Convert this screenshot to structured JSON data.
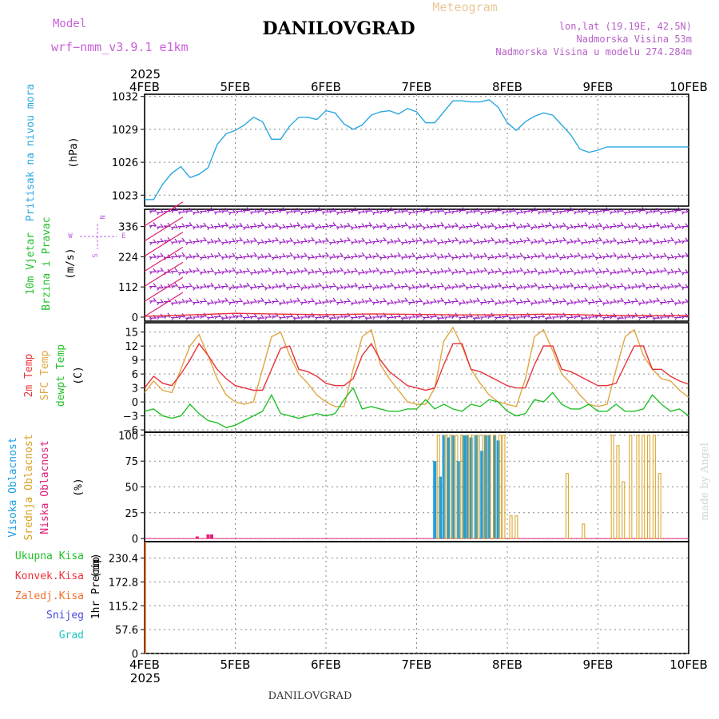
{
  "header": {
    "model_label": "Model",
    "model_name": "wrf−nmm_v3.9.1  e1km",
    "station_title": "DANILOVGRAD",
    "meteogram_label": "Meteogram",
    "lonlat": "lon,lat (19.19E, 42.5N)",
    "altitude": "Nadmorska Visina 53m",
    "model_altitude": "Nadmorska Visina u modelu 274.284m"
  },
  "footer": {
    "station": "DANILOVGRAD",
    "credit": "made by Angel"
  },
  "colors": {
    "pressure": "#2aa7e0",
    "wind": "#a020c8",
    "wind_arrow": "#e0206e",
    "t2m": "#e8323c",
    "sfc": "#e0a640",
    "dewpt": "#22c02a",
    "high_cloud": "#1e9ee0",
    "mid_cloud": "#d8a020",
    "low_cloud": "#e0207a",
    "precip_total": "#22c02a",
    "precip_conv": "#e8323c",
    "precip_frz": "#f07030",
    "precip_snow": "#4848e0",
    "precip_hail": "#20c8c0"
  },
  "chart_data": [
    {
      "type": "line",
      "panel": "pressure",
      "ylabel_main": "Pritisak na nivou mora",
      "ylabel_unit": "(hPa)",
      "x_ticks": [
        "4FEB",
        "5FEB",
        "6FEB",
        "7FEB",
        "8FEB",
        "9FEB",
        "10FEB"
      ],
      "x_year": "2025",
      "y_ticks": [
        "1023",
        "1026",
        "1029",
        "1032"
      ],
      "ylim": [
        1022,
        1032.2
      ],
      "x": [
        0,
        0.1,
        0.2,
        0.3,
        0.4,
        0.5,
        0.6,
        0.7,
        0.8,
        0.9,
        1.0,
        1.1,
        1.2,
        1.3,
        1.4,
        1.5,
        1.6,
        1.7,
        1.8,
        1.9,
        2.0,
        2.1,
        2.2,
        2.3,
        2.4,
        2.5,
        2.6,
        2.7,
        2.8,
        2.9,
        3.0,
        3.1,
        3.2,
        3.3,
        3.4,
        3.5,
        3.6,
        3.7,
        3.8,
        3.9,
        4.0,
        4.1,
        4.2,
        4.3,
        4.4,
        4.5,
        4.6,
        4.7,
        4.8,
        4.9,
        5.0,
        5.1,
        5.2,
        5.3,
        5.4,
        5.5,
        5.6,
        5.7,
        5.8,
        5.9,
        6.0
      ],
      "series": [
        {
          "name": "Pritisak na nivou mora",
          "values": [
            1022.6,
            1022.6,
            1024.0,
            1025.0,
            1025.6,
            1024.6,
            1024.9,
            1025.5,
            1027.6,
            1028.6,
            1028.9,
            1029.4,
            1030.1,
            1029.7,
            1028.1,
            1028.1,
            1029.3,
            1030.1,
            1030.1,
            1029.9,
            1030.7,
            1030.5,
            1029.5,
            1029.0,
            1029.4,
            1030.3,
            1030.6,
            1030.7,
            1030.4,
            1030.9,
            1030.6,
            1029.6,
            1029.6,
            1030.6,
            1031.6,
            1031.6,
            1031.5,
            1031.5,
            1031.7,
            1031.0,
            1029.6,
            1028.9,
            1029.7,
            1030.2,
            1030.5,
            1030.3,
            1029.4,
            1028.5,
            1027.2,
            1026.9,
            1027.1,
            1027.4,
            1027.4,
            1027.4,
            1027.4,
            1027.4,
            1027.4,
            1027.4,
            1027.4,
            1027.4,
            1027.4
          ]
        }
      ]
    },
    {
      "type": "line",
      "panel": "wind",
      "ylabel_main": "10m Vjetar",
      "ylabel_sub": "Brzina i Pravac",
      "ylabel_unit": "(m/s)",
      "compass": [
        "N",
        "W",
        "E",
        "S"
      ],
      "y_ticks": [
        "0",
        "112",
        "224",
        "336"
      ],
      "ylim": [
        -15,
        400
      ],
      "barb_levels": [
        0,
        56,
        112,
        168,
        224,
        280,
        336,
        392
      ],
      "x": [
        0,
        0.5,
        1.0,
        1.5,
        2.0,
        2.5,
        3.0,
        3.5,
        4.0,
        4.5,
        5.0,
        5.5,
        6.0
      ],
      "series": [
        {
          "name": "10m Vjetar",
          "values": [
            3,
            8,
            14,
            11,
            9,
            12,
            10,
            8,
            9,
            11,
            7,
            6,
            6
          ]
        }
      ]
    },
    {
      "type": "line",
      "panel": "temperature",
      "ylabel_main": "2m Temp",
      "ylabel_sub": "SFC Temp",
      "ylabel_sub2": "dewpt Temp",
      "ylabel_unit": "(C)",
      "y_ticks": [
        "−6",
        "−3",
        "0",
        "3",
        "6",
        "9",
        "12",
        "15"
      ],
      "ylim": [
        -6.5,
        17
      ],
      "x": [
        0,
        0.1,
        0.2,
        0.3,
        0.4,
        0.5,
        0.6,
        0.7,
        0.8,
        0.9,
        1.0,
        1.1,
        1.2,
        1.3,
        1.4,
        1.5,
        1.6,
        1.7,
        1.8,
        1.9,
        2.0,
        2.1,
        2.2,
        2.3,
        2.4,
        2.5,
        2.6,
        2.7,
        2.8,
        2.9,
        3.0,
        3.1,
        3.2,
        3.3,
        3.4,
        3.5,
        3.6,
        3.7,
        3.8,
        3.9,
        4.0,
        4.1,
        4.2,
        4.3,
        4.4,
        4.5,
        4.6,
        4.7,
        4.8,
        4.9,
        5.0,
        5.1,
        5.2,
        5.3,
        5.4,
        5.5,
        5.6,
        5.7,
        5.8,
        5.9,
        6.0
      ],
      "series": [
        {
          "name": "2m Temp",
          "values": [
            3,
            5.5,
            4,
            3.5,
            6,
            9,
            12.5,
            10,
            7,
            5,
            3.5,
            3,
            2.5,
            2.5,
            7,
            11.5,
            12,
            7,
            6.5,
            5.5,
            4,
            3.5,
            3.5,
            5,
            10,
            12.5,
            9,
            6.5,
            5,
            3.5,
            3,
            2.5,
            3,
            8,
            12.5,
            12.5,
            7,
            6.5,
            5.5,
            4.5,
            3.5,
            3,
            3,
            8,
            12,
            12,
            7,
            6.5,
            5.5,
            4.5,
            3.5,
            3.5,
            4,
            8,
            12,
            12,
            7,
            7,
            5.5,
            4.5,
            3.8
          ]
        },
        {
          "name": "SFC Temp",
          "values": [
            2,
            4.5,
            2.5,
            2,
            7,
            12,
            14.5,
            10,
            5,
            1.5,
            0,
            -0.5,
            0,
            7,
            14,
            15,
            10,
            6,
            4,
            1.5,
            0,
            -1,
            -1,
            7,
            14,
            15.5,
            8,
            5,
            2.5,
            0,
            -0.5,
            -0.5,
            3,
            13,
            16,
            12,
            7,
            4,
            1.5,
            0,
            -0.5,
            -1,
            5,
            14,
            15.5,
            11,
            6,
            4,
            1.5,
            -0.5,
            -1,
            -0.5,
            7,
            14,
            15.5,
            10,
            7,
            5,
            4.5,
            2.5,
            1
          ]
        },
        {
          "name": "dewpt Temp",
          "values": [
            -2,
            -1.5,
            -3,
            -3.5,
            -3,
            -0.5,
            -2.5,
            -4,
            -4.5,
            -5.5,
            -5,
            -4,
            -3,
            -2,
            1.5,
            -2.5,
            -3,
            -3.5,
            -3,
            -2.5,
            -3,
            -2.5,
            0.5,
            3,
            -1.5,
            -1,
            -1.5,
            -2,
            -2,
            -1.5,
            -1.5,
            0.5,
            -1.5,
            -0.5,
            -1.5,
            -2,
            -0.5,
            -1,
            0.5,
            0,
            -2,
            -3,
            -2.5,
            0.5,
            0,
            2,
            -0.5,
            -1.5,
            -1.5,
            -0.5,
            -2,
            -2,
            -0.5,
            -2,
            -2,
            -1.5,
            1.5,
            -0.5,
            -2,
            -1.5,
            -3
          ]
        }
      ]
    },
    {
      "type": "bar",
      "panel": "clouds",
      "ylabel_main": "Visoka Oblacnost",
      "ylabel_sub": "Srednja Oblacnost",
      "ylabel_sub2": "Niska Oblacnost",
      "ylabel_unit": "(%)",
      "y_ticks": [
        "0",
        "25",
        "50",
        "75",
        "100"
      ],
      "ylim": [
        -3,
        103
      ],
      "series": [
        {
          "name": "Visoka Oblacnost",
          "x": [
            3.2,
            3.26,
            3.3,
            3.35,
            3.4,
            3.46,
            3.52,
            3.55,
            3.6,
            3.66,
            3.72,
            3.76,
            3.8,
            3.86,
            3.9
          ],
          "values": [
            75,
            60,
            100,
            98,
            100,
            75,
            100,
            100,
            98,
            100,
            85,
            100,
            100,
            100,
            95
          ]
        },
        {
          "name": "Srednja Oblacnost",
          "x": [
            3.24,
            3.32,
            3.38,
            3.44,
            3.5,
            3.56,
            3.62,
            3.68,
            3.74,
            3.8,
            3.86,
            3.92,
            3.96,
            4.04,
            4.1,
            4.66,
            4.84,
            5.16,
            5.22,
            5.28,
            5.36,
            5.44,
            5.5,
            5.56,
            5.62,
            5.68
          ],
          "values": [
            100,
            100,
            100,
            100,
            100,
            100,
            100,
            100,
            100,
            100,
            100,
            100,
            100,
            22,
            22,
            63,
            14,
            100,
            90,
            55,
            100,
            100,
            100,
            100,
            100,
            63
          ]
        },
        {
          "name": "Niska Oblacnost",
          "x": [
            0.58,
            0.7,
            0.74
          ],
          "values": [
            2,
            4,
            4
          ]
        }
      ]
    },
    {
      "type": "bar",
      "panel": "precip",
      "ylabel_main": "1hr Precip",
      "ylabel_unit": "(mm)",
      "legend": [
        "Ukupna  Kisa",
        "Konvek.Kisa",
        "Zaledj.Kisa",
        "Snijeg",
        "Grad"
      ],
      "y_ticks": [
        "0",
        "57.6",
        "115.2",
        "172.8",
        "230.4"
      ],
      "ylim": [
        0,
        270
      ],
      "x": [
        0
      ],
      "series": [
        {
          "name": "Ukupna  Kisa",
          "values": [
            280
          ]
        }
      ]
    }
  ]
}
